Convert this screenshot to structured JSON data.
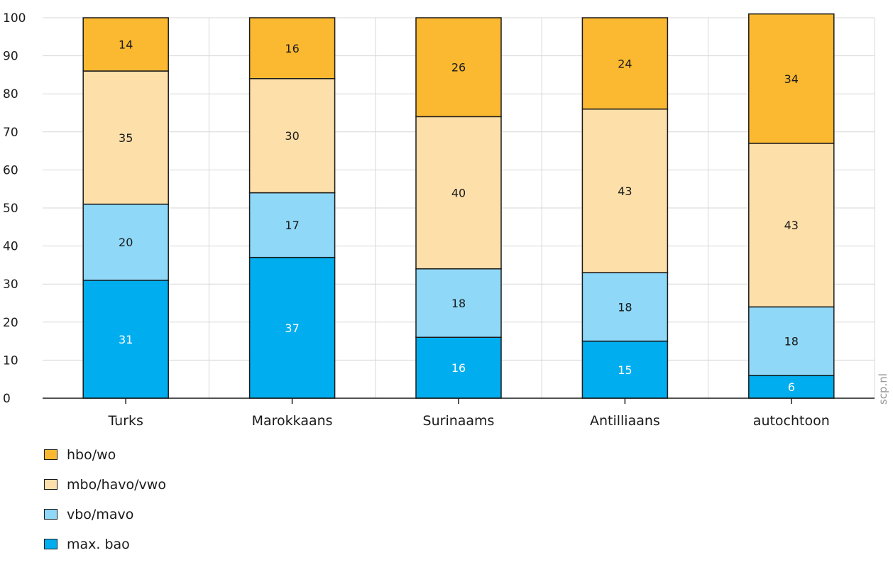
{
  "chart_data": {
    "type": "bar",
    "stacked": true,
    "categories": [
      "Turks",
      "Marokkaans",
      "Surinaams",
      "Antilliaans",
      "autochtoon"
    ],
    "series": [
      {
        "name": "max. bao",
        "color": "#00aeef",
        "label_color": "#ffffff",
        "values": [
          31,
          37,
          16,
          15,
          6
        ]
      },
      {
        "name": "vbo/mavo",
        "color": "#8fd8f8",
        "label_color": "#1a1a1a",
        "values": [
          20,
          17,
          18,
          18,
          18
        ]
      },
      {
        "name": "mbo/havo/vwo",
        "color": "#fddfa9",
        "label_color": "#1a1a1a",
        "values": [
          35,
          30,
          40,
          43,
          43
        ]
      },
      {
        "name": "hbo/wo",
        "color": "#fbb931",
        "label_color": "#1a1a1a",
        "values": [
          14,
          16,
          26,
          24,
          34
        ]
      }
    ],
    "legend_order": [
      "hbo/wo",
      "mbo/havo/vwo",
      "vbo/mavo",
      "max. bao"
    ],
    "ylim": [
      0,
      100
    ],
    "yticks": [
      0,
      10,
      20,
      30,
      40,
      50,
      60,
      70,
      80,
      90,
      100
    ],
    "grid": true,
    "legend_position": "bottom-left",
    "source": "scp.nl"
  }
}
